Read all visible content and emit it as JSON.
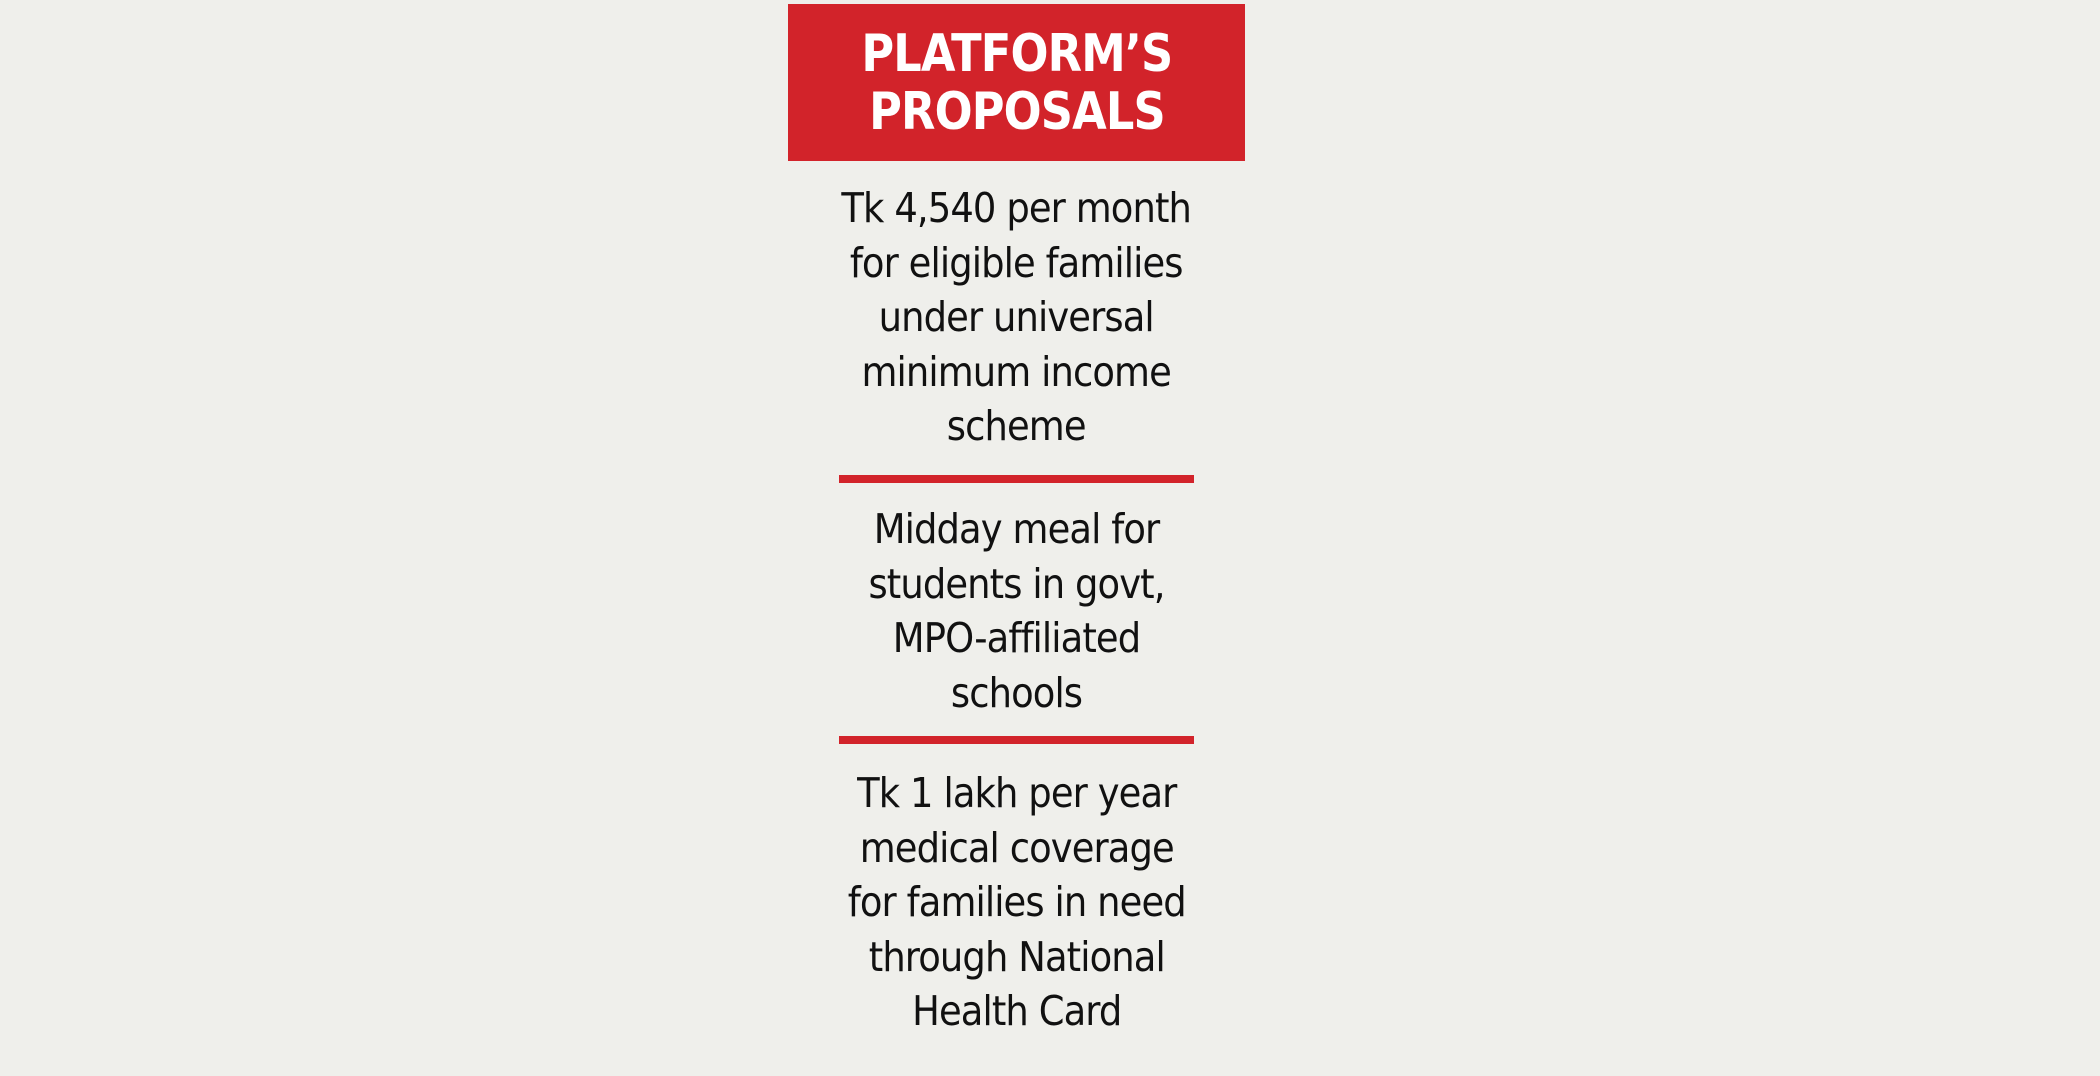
{
  "header": {
    "line1": "PLATFORM’S",
    "line2": "PROPOSALS"
  },
  "proposals": [
    {
      "text": "Tk 4,540 per month\nfor eligible families\nunder universal\nminimum income\nscheme"
    },
    {
      "text": "Midday meal for\nstudents in govt,\nMPO-affiliated\nschools"
    },
    {
      "text": "Tk 1 lakh per year\nmedical coverage\nfor families in need\nthrough National\nHealth Card"
    }
  ],
  "colors": {
    "accent": "#d2232a",
    "background": "#efefeb",
    "text": "#111111"
  }
}
